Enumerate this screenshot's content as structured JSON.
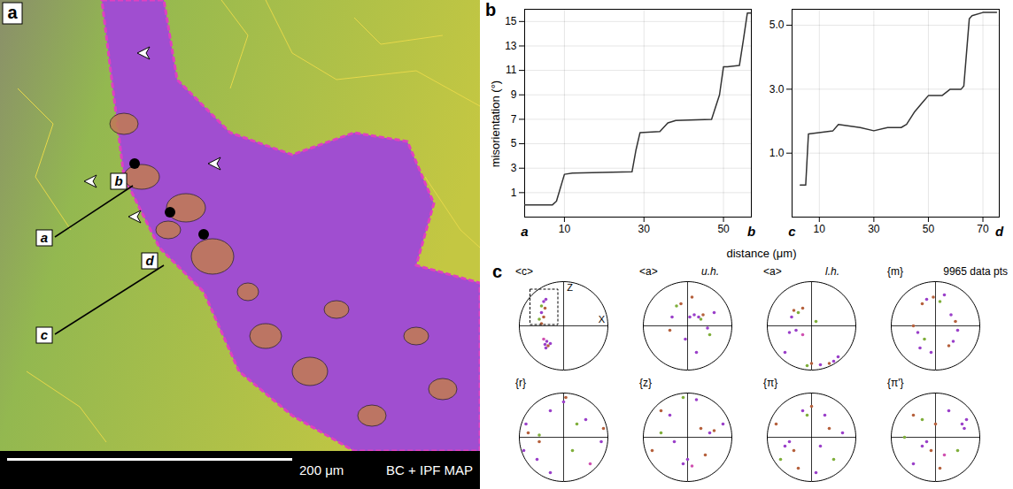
{
  "chart_data": [
    {
      "type": "map",
      "panel": "a",
      "profiles": [
        [
          "a",
          "b"
        ],
        [
          "c",
          "d"
        ]
      ],
      "scale_bar": "200 μm",
      "caption": "BC + IPF MAP"
    },
    {
      "type": "line",
      "panel": "b",
      "ylabel": "misorientation (°)",
      "xlabel": "distance (μm)",
      "x_end_labels": [
        "a",
        "b"
      ],
      "x": [
        0,
        7,
        8,
        10,
        12,
        27,
        28,
        29,
        34,
        36,
        38,
        47,
        49,
        50,
        51,
        54,
        55,
        56,
        57
      ],
      "values": [
        0,
        0,
        0.3,
        2.5,
        2.6,
        2.7,
        4.5,
        5.9,
        6.0,
        6.7,
        6.9,
        7.0,
        9,
        11.3,
        11.3,
        11.4,
        13.5,
        15.7,
        15.7
      ],
      "xlim": [
        0,
        57
      ],
      "ylim": [
        -1,
        16
      ],
      "xticks": [
        10,
        30,
        50
      ],
      "yticks": [
        1,
        3,
        5,
        7,
        9,
        11,
        13,
        15
      ],
      "grid": true,
      "color": "#333333"
    },
    {
      "type": "line",
      "x_end_labels": [
        "c",
        "d"
      ],
      "x": [
        3,
        5,
        6,
        15,
        17,
        25,
        30,
        35,
        40,
        42,
        45,
        48,
        50,
        55,
        58,
        62,
        63,
        65,
        66,
        70,
        75
      ],
      "values": [
        0,
        0,
        1.6,
        1.7,
        1.9,
        1.8,
        1.7,
        1.8,
        1.8,
        1.9,
        2.3,
        2.6,
        2.8,
        2.8,
        3.0,
        3.0,
        3.1,
        5.2,
        5.3,
        5.4,
        5.4
      ],
      "xlim": [
        0,
        76
      ],
      "ylim": [
        -1,
        5.5
      ],
      "xticks": [
        10,
        30,
        50,
        70
      ],
      "yticks": [
        1,
        3,
        5
      ],
      "grid": true,
      "color": "#333333"
    },
    {
      "type": "pole_figures",
      "panel": "c",
      "count_label": "9965 data pts",
      "lim": [
        -1,
        1
      ],
      "colors": [
        "#9a3fc9",
        "#7fae3a",
        "#b5603c",
        "#d050b0"
      ],
      "figures": [
        {
          "title": "<c>",
          "axis_labels": [
            "Z",
            "X"
          ],
          "points": [
            [
              -0.45,
              0.55,
              0
            ],
            [
              -0.5,
              0.45,
              1
            ],
            [
              -0.42,
              0.4,
              2
            ],
            [
              -0.5,
              0.3,
              0
            ],
            [
              -0.45,
              0.2,
              2
            ],
            [
              -0.55,
              0.15,
              1
            ],
            [
              -0.4,
              0.6,
              0
            ],
            [
              -0.38,
              -0.35,
              0
            ],
            [
              -0.42,
              -0.42,
              0
            ],
            [
              -0.35,
              -0.45,
              2
            ],
            [
              -0.45,
              -0.3,
              3
            ],
            [
              -0.3,
              -0.4,
              0
            ],
            [
              -0.4,
              -0.5,
              0
            ],
            [
              -0.5,
              0.05,
              2
            ]
          ]
        },
        {
          "title": "<a>",
          "subtitle": "u.h.",
          "points": [
            [
              0.05,
              0.2,
              0
            ],
            [
              0.15,
              0.25,
              0
            ],
            [
              0.25,
              0.2,
              0
            ],
            [
              0.35,
              0.25,
              2
            ],
            [
              0.3,
              0.15,
              1
            ],
            [
              -0.15,
              0.5,
              2
            ],
            [
              -0.25,
              0.45,
              1
            ],
            [
              -0.35,
              0.2,
              0
            ],
            [
              0.45,
              -0.05,
              0
            ],
            [
              0.5,
              -0.2,
              1
            ],
            [
              0.1,
              0.65,
              2
            ],
            [
              -0.05,
              -0.3,
              0
            ],
            [
              0.6,
              0.3,
              0
            ],
            [
              -0.4,
              -0.1,
              2
            ],
            [
              0.2,
              -0.6,
              0
            ]
          ]
        },
        {
          "title": "<a>",
          "subtitle": "l.h.",
          "points": [
            [
              -0.4,
              0.35,
              2
            ],
            [
              -0.3,
              0.3,
              1
            ],
            [
              -0.45,
              0.2,
              0
            ],
            [
              -0.2,
              0.4,
              2
            ],
            [
              -0.35,
              -0.1,
              0
            ],
            [
              -0.5,
              -0.15,
              0
            ],
            [
              -0.2,
              -0.2,
              3
            ],
            [
              0.0,
              -0.85,
              2
            ],
            [
              -0.1,
              -0.9,
              1
            ],
            [
              0.2,
              -0.88,
              0
            ],
            [
              0.5,
              -0.8,
              0
            ],
            [
              0.6,
              -0.7,
              0
            ],
            [
              0.4,
              -0.85,
              2
            ],
            [
              -0.6,
              -0.6,
              0
            ],
            [
              0.1,
              0.1,
              1
            ]
          ]
        },
        {
          "title": "{m}",
          "points": [
            [
              -0.2,
              0.6,
              0
            ],
            [
              -0.05,
              0.65,
              2
            ],
            [
              0.1,
              0.55,
              1
            ],
            [
              -0.3,
              0.5,
              2
            ],
            [
              0.35,
              0.25,
              0
            ],
            [
              0.45,
              0.1,
              2
            ],
            [
              0.5,
              -0.1,
              0
            ],
            [
              0.4,
              -0.35,
              0
            ],
            [
              0.3,
              -0.45,
              2
            ],
            [
              -0.25,
              -0.3,
              1
            ],
            [
              -0.4,
              -0.15,
              0
            ],
            [
              -0.5,
              0.0,
              2
            ],
            [
              -0.35,
              -0.5,
              0
            ],
            [
              0.2,
              0.7,
              0
            ],
            [
              -0.1,
              -0.6,
              0
            ]
          ]
        },
        {
          "title": "{r}",
          "points": [
            [
              -0.85,
              0.3,
              0
            ],
            [
              -0.8,
              0.1,
              2
            ],
            [
              -0.9,
              -0.3,
              0
            ],
            [
              -0.55,
              -0.1,
              2
            ],
            [
              -0.55,
              0.05,
              1
            ],
            [
              -0.6,
              -0.5,
              0
            ],
            [
              -0.3,
              -0.8,
              0
            ],
            [
              0.0,
              0.8,
              0
            ],
            [
              0.05,
              0.9,
              2
            ],
            [
              0.3,
              0.3,
              1
            ],
            [
              0.5,
              0.4,
              0
            ],
            [
              0.85,
              -0.1,
              0
            ],
            [
              0.9,
              0.2,
              2
            ],
            [
              0.6,
              -0.6,
              3
            ],
            [
              0.2,
              -0.3,
              1
            ],
            [
              -0.3,
              0.6,
              0
            ]
          ]
        },
        {
          "title": "{z}",
          "points": [
            [
              -0.6,
              0.6,
              2
            ],
            [
              -0.4,
              0.5,
              0
            ],
            [
              -0.1,
              0.9,
              1
            ],
            [
              0.2,
              0.85,
              0
            ],
            [
              0.3,
              0.2,
              2
            ],
            [
              0.5,
              0.1,
              0
            ],
            [
              0.6,
              0.15,
              2
            ],
            [
              -0.3,
              -0.1,
              0
            ],
            [
              -0.6,
              0.1,
              1
            ],
            [
              0.0,
              -0.5,
              0
            ],
            [
              -0.1,
              -0.6,
              0
            ],
            [
              0.1,
              -0.65,
              3
            ],
            [
              0.4,
              -0.4,
              2
            ],
            [
              0.8,
              0.3,
              0
            ],
            [
              -0.8,
              -0.3,
              2
            ]
          ]
        },
        {
          "title": "{π}",
          "points": [
            [
              -0.2,
              0.6,
              0
            ],
            [
              0.0,
              0.7,
              2
            ],
            [
              -0.1,
              0.5,
              1
            ],
            [
              0.3,
              0.5,
              0
            ],
            [
              0.4,
              0.2,
              2
            ],
            [
              -0.5,
              -0.1,
              0
            ],
            [
              -0.6,
              -0.2,
              0
            ],
            [
              -0.4,
              -0.3,
              2
            ],
            [
              -0.7,
              -0.5,
              1
            ],
            [
              0.2,
              -0.2,
              0
            ],
            [
              0.5,
              -0.5,
              1
            ],
            [
              0.1,
              -0.8,
              0
            ],
            [
              -0.3,
              -0.7,
              2
            ],
            [
              0.7,
              0.1,
              0
            ],
            [
              -0.8,
              0.3,
              2
            ]
          ]
        },
        {
          "title": "{π'}",
          "points": [
            [
              -0.5,
              0.5,
              2
            ],
            [
              -0.3,
              0.4,
              1
            ],
            [
              0.0,
              0.3,
              2
            ],
            [
              -0.2,
              -0.1,
              0
            ],
            [
              -0.3,
              -0.2,
              0
            ],
            [
              -0.1,
              -0.3,
              2
            ],
            [
              0.6,
              0.3,
              0
            ],
            [
              0.7,
              0.4,
              0
            ],
            [
              0.65,
              0.2,
              0
            ],
            [
              0.5,
              -0.3,
              1
            ],
            [
              0.1,
              -0.7,
              2
            ],
            [
              -0.5,
              -0.6,
              0
            ],
            [
              -0.7,
              0.0,
              1
            ],
            [
              0.3,
              0.6,
              0
            ],
            [
              0.2,
              -0.4,
              3
            ]
          ]
        }
      ]
    }
  ]
}
